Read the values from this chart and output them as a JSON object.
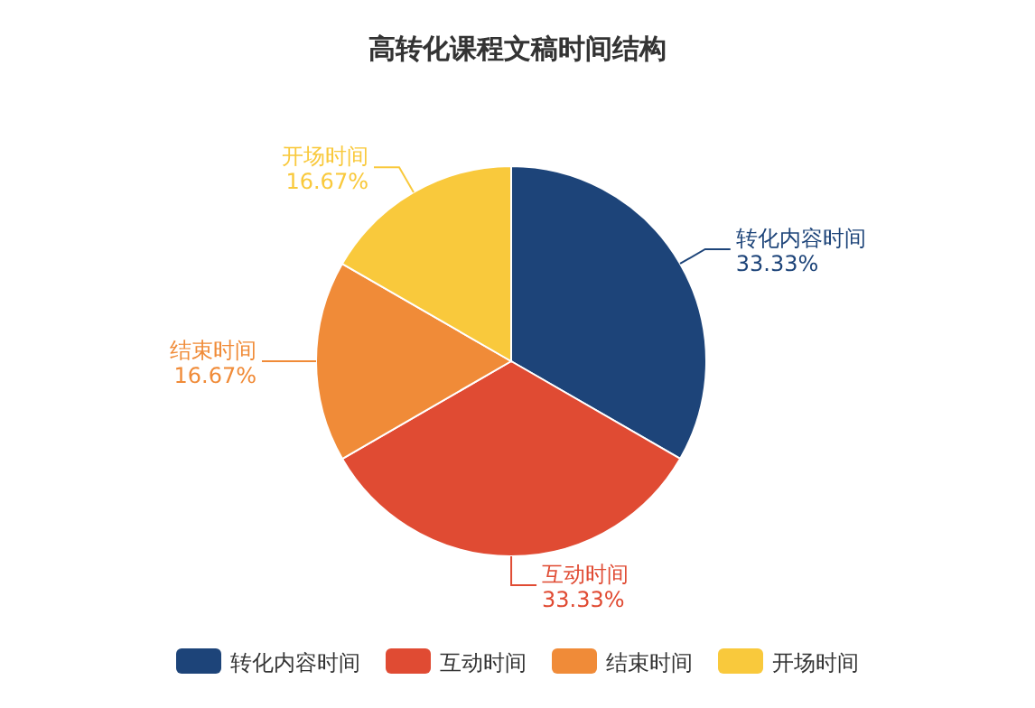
{
  "chart_data": {
    "type": "pie",
    "title": "高转化课程文稿时间结构",
    "categories": [
      "转化内容时间",
      "互动时间",
      "结束时间",
      "开场时间"
    ],
    "values": [
      33.33,
      33.33,
      16.67,
      16.67
    ],
    "value_labels": [
      "33.33%",
      "33.33%",
      "16.67%",
      "16.67%"
    ],
    "colors": [
      "#1d4479",
      "#e04b33",
      "#f08b38",
      "#f9c93c"
    ],
    "legend": "bottom"
  }
}
